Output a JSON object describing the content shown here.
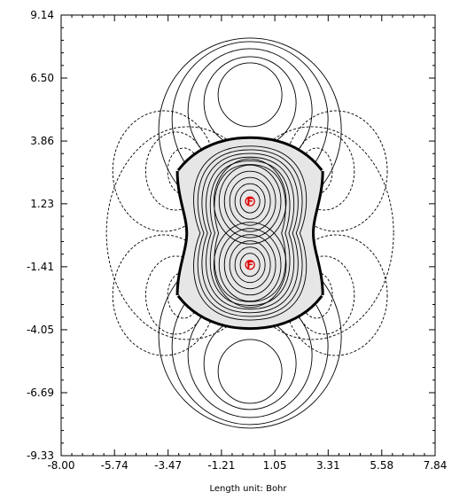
{
  "chart_data": {
    "type": "contour",
    "title": "",
    "xlabel": "Length unit: Bohr",
    "ylabel": "",
    "xlim": [
      -8.0,
      7.84
    ],
    "ylim": [
      -9.33,
      9.14
    ],
    "x_ticks": [
      "-8.00",
      "-5.74",
      "-3.47",
      "-1.21",
      "1.05",
      "3.31",
      "5.58",
      "7.84"
    ],
    "y_ticks": [
      "9.14",
      "6.50",
      "3.86",
      "1.23",
      "-1.41",
      "-4.05",
      "-6.69",
      "-9.33"
    ],
    "grid": false,
    "legend": "none",
    "colors": {
      "frame": "#000000",
      "contour": "#000000",
      "molecule_fill": "#e6e6e6",
      "atom": "#e00000"
    },
    "atoms": [
      {
        "label": "F",
        "x": 0.0,
        "y": 1.33
      },
      {
        "label": "F",
        "x": 0.0,
        "y": -1.33
      }
    ],
    "isosurface": {
      "style": "bold",
      "x_half_width": 3.08,
      "y_top": 4.0,
      "y_bottom": -4.0
    },
    "positive_contour_levels": [
      1,
      2,
      3,
      4,
      5,
      6,
      7,
      8,
      9,
      10,
      11,
      12
    ],
    "negative_contour_levels": [
      1,
      2,
      3
    ]
  }
}
